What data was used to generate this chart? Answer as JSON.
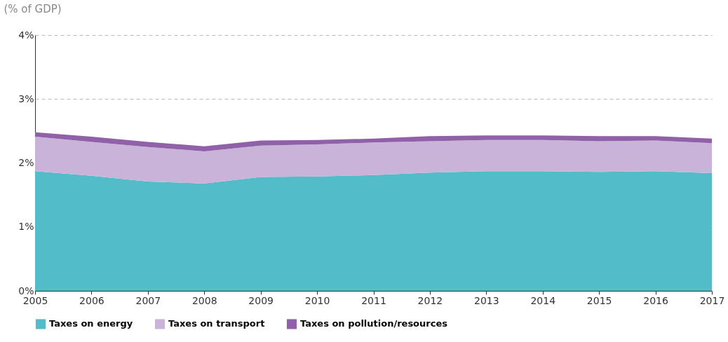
{
  "chart_data": {
    "type": "area",
    "stacked": true,
    "ylabel": "(% of GDP)",
    "x": [
      2005,
      2006,
      2007,
      2008,
      2009,
      2010,
      2011,
      2012,
      2013,
      2014,
      2015,
      2016,
      2017
    ],
    "xlim": [
      2005,
      2017
    ],
    "xticks": [
      2005,
      2006,
      2007,
      2008,
      2009,
      2010,
      2011,
      2012,
      2013,
      2014,
      2015,
      2016,
      2017
    ],
    "ylim": [
      0,
      4
    ],
    "yticks": [
      {
        "value": 0,
        "label": "0%"
      },
      {
        "value": 1,
        "label": "1%"
      },
      {
        "value": 2,
        "label": "2%"
      },
      {
        "value": 3,
        "label": "3%"
      },
      {
        "value": 4,
        "label": "4%"
      }
    ],
    "grid": "y",
    "legend": "bottom",
    "series": [
      {
        "name": "Taxes on energy",
        "color": "#52bcc9",
        "values": [
          1.87,
          1.8,
          1.71,
          1.68,
          1.78,
          1.79,
          1.81,
          1.85,
          1.87,
          1.87,
          1.86,
          1.87,
          1.84
        ]
      },
      {
        "name": "Taxes on transport",
        "color": "#c9b3d9",
        "values": [
          0.54,
          0.53,
          0.54,
          0.5,
          0.49,
          0.5,
          0.51,
          0.49,
          0.49,
          0.49,
          0.48,
          0.48,
          0.47
        ]
      },
      {
        "name": "Taxes on pollution/resources",
        "color": "#9060a8",
        "values": [
          0.07,
          0.08,
          0.08,
          0.08,
          0.08,
          0.07,
          0.06,
          0.08,
          0.07,
          0.07,
          0.08,
          0.07,
          0.07
        ]
      }
    ]
  }
}
